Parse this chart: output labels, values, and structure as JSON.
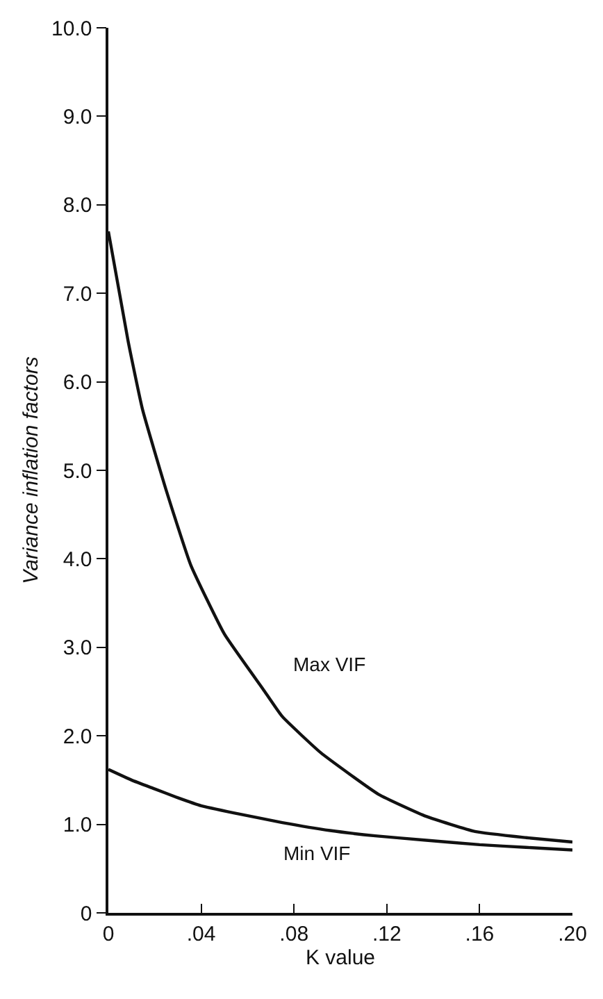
{
  "chart_data": {
    "type": "line",
    "xlabel": "K value",
    "ylabel": "Variance inflation factors",
    "series": [
      {
        "name": "Max VIF",
        "color": "#111111",
        "x": [
          0,
          0.0085,
          0.0147,
          0.0251,
          0.0355,
          0.05,
          0.0666,
          0.0749,
          0.0915,
          0.1164,
          0.137,
          0.158,
          0.18,
          0.2
        ],
        "values": [
          7.7,
          6.46,
          5.69,
          4.76,
          3.93,
          3.15,
          2.53,
          2.22,
          1.81,
          1.34,
          1.09,
          0.92,
          0.85,
          0.8
        ]
      },
      {
        "name": "Min VIF",
        "color": "#111111",
        "x": [
          0,
          0.01,
          0.02,
          0.03,
          0.04,
          0.054,
          0.075,
          0.0956,
          0.115,
          0.137,
          0.16,
          0.18,
          0.2
        ],
        "values": [
          1.62,
          1.5,
          1.4,
          1.3,
          1.21,
          1.13,
          1.02,
          0.93,
          0.87,
          0.82,
          0.77,
          0.74,
          0.71
        ]
      }
    ],
    "xlim": [
      0,
      0.2
    ],
    "ylim": [
      0,
      10
    ],
    "xticks": [
      0,
      {
        "value": 0.04,
        "label": ".04"
      },
      {
        "value": 0.08,
        "label": ".08"
      },
      {
        "value": 0.12,
        "label": ".12"
      },
      {
        "value": 0.16,
        "label": ".16"
      },
      {
        "value": 0.2,
        "label": ".20"
      }
    ],
    "yticks": [
      0,
      {
        "value": 1,
        "label": "1.0"
      },
      {
        "value": 2,
        "label": "2.0"
      },
      {
        "value": 3,
        "label": "3.0"
      },
      {
        "value": 4,
        "label": "4.0"
      },
      {
        "value": 5,
        "label": "5.0"
      },
      {
        "value": 6,
        "label": "6.0"
      },
      {
        "value": 7,
        "label": "7.0"
      },
      {
        "value": 8,
        "label": "8.0"
      },
      {
        "value": 9,
        "label": "9.0"
      },
      {
        "value": 10,
        "label": "10.0"
      }
    ],
    "grid": false,
    "legend": false,
    "marker": "none",
    "line_style": "solid"
  }
}
